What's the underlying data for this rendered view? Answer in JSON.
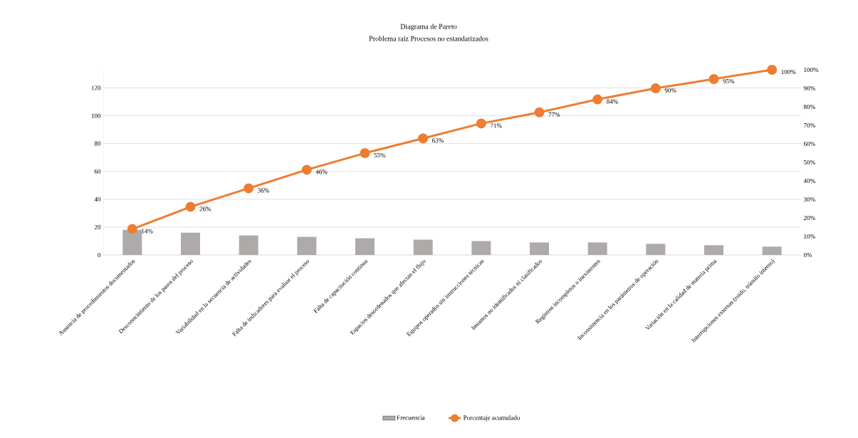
{
  "chart_data": {
    "type": "bar",
    "title": "Diagrama de Pareto",
    "subtitle": "Problema raíz Procesos no estandarizados",
    "categories": [
      "Ausencia de procedimientos documentados",
      "Desconocimiento de los pasos del proceso",
      "Variabilidad en la secuencia de actividades",
      "Falta de indicadores para evaluar el proceso",
      "Falta de capacitación continua",
      "Espacios desordenados que afectan el flujo",
      "Equipos operados sin instrucciones técnicas",
      "Insumos no identificados ni clasificados",
      "Registros incompletos o inexistentes",
      "Inconsistencia en los parámetros de operación",
      "Variación en la calidad de materia prima",
      "Interrupciones externas (ruido, tránsito interno)"
    ],
    "series": [
      {
        "name": "Frecuencia",
        "color": "#aeaaaa",
        "values": [
          18,
          16,
          14,
          13,
          12,
          11,
          10,
          9,
          9,
          8,
          7,
          6
        ]
      },
      {
        "name": "Porcentaje acumulado",
        "type": "line",
        "axis": "y2",
        "color": "#ed7d31",
        "marker": "circle",
        "values": [
          14,
          26,
          36,
          46,
          55,
          63,
          71,
          77,
          84,
          90,
          95,
          100
        ],
        "value_labels": [
          "14%",
          "26%",
          "36%",
          "46%",
          "55%",
          "63%",
          "71%",
          "77%",
          "84%",
          "90%",
          "95%",
          "100%"
        ]
      }
    ],
    "ylim": [
      0,
      133
    ],
    "yticks": [
      0,
      20,
      40,
      60,
      80,
      100,
      120
    ],
    "y2lim": [
      0,
      100
    ],
    "y2ticks": [
      {
        "value": 0,
        "label": "0%"
      },
      {
        "value": 10,
        "label": "10%"
      },
      {
        "value": 20,
        "label": "20%"
      },
      {
        "value": 30,
        "label": "30%"
      },
      {
        "value": 40,
        "label": "40%"
      },
      {
        "value": 50,
        "label": "50%"
      },
      {
        "value": 60,
        "label": "60%"
      },
      {
        "value": 70,
        "label": "70%"
      },
      {
        "value": 80,
        "label": "80%"
      },
      {
        "value": 90,
        "label": "90%"
      },
      {
        "value": 100,
        "label": "100%"
      }
    ],
    "grid": "y",
    "legend": "bottom"
  }
}
